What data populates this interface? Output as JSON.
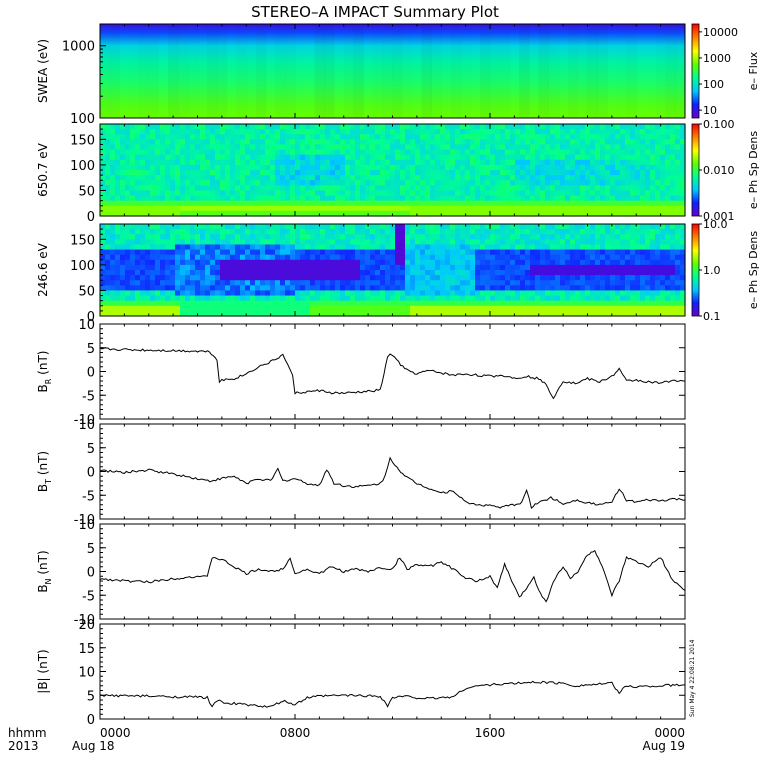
{
  "title": "STEREO–A IMPACT Summary Plot",
  "timestamp": "Sun May  4 22:08:21 2014",
  "time_axis": {
    "row1_labels": [
      "hhmm",
      "0000",
      "0800",
      "1600",
      "0000"
    ],
    "row2_labels": [
      "2013",
      "Aug 18",
      "Aug 19"
    ],
    "range_hours": [
      0,
      24
    ],
    "ticks_hours": [
      0,
      8,
      16,
      24
    ]
  },
  "colors": {
    "line": "#000000",
    "colormap": [
      "#6a00c8",
      "#1020ff",
      "#00c8ff",
      "#00ff90",
      "#60ff00",
      "#ffff00",
      "#ff8000",
      "#ff0000"
    ]
  },
  "chart_data": [
    {
      "type": "heatmap",
      "id": "swea",
      "ylabel": "SWEA (eV)",
      "y_scale": "log",
      "ylim": [
        100,
        2000
      ],
      "yticks": [
        "100",
        "1000"
      ],
      "colorbar": {
        "label": "e– Flux",
        "scale": "log",
        "ticks": [
          "10",
          "100",
          "1000",
          "10000"
        ],
        "range": [
          5,
          20000
        ]
      },
      "profile_energy": [
        100,
        150,
        300,
        600,
        1000,
        1500,
        2000
      ],
      "profile_level": [
        0.58,
        0.55,
        0.47,
        0.4,
        0.32,
        0.18,
        0.08
      ]
    },
    {
      "type": "heatmap",
      "id": "pad650",
      "ylabel": "650.7 eV",
      "ylim": [
        0,
        180
      ],
      "yticks": [
        "0",
        "50",
        "100",
        "150"
      ],
      "colorbar": {
        "label": "e– Ph Sp Dens",
        "scale": "log",
        "ticks": [
          "0.001",
          "0.010",
          "0.100"
        ],
        "range": [
          0.001,
          0.1
        ]
      }
    },
    {
      "type": "heatmap",
      "id": "pad246",
      "ylabel": "246.6 eV",
      "ylim": [
        0,
        180
      ],
      "yticks": [
        "0",
        "50",
        "100",
        "150"
      ],
      "colorbar": {
        "label": "e– Ph Sp Dens",
        "scale": "log",
        "ticks": [
          "0.1",
          "1.0",
          "10.0"
        ],
        "range": [
          0.1,
          10
        ]
      }
    },
    {
      "type": "line",
      "id": "br",
      "ylabel": "B",
      "ylabel_sub": "R",
      "ylabel_unit": " (nT)",
      "ylim": [
        -10,
        10
      ],
      "yticks": [
        "-10",
        "-5",
        "0",
        "5",
        "10"
      ],
      "x": [
        0,
        1,
        2,
        3,
        4,
        4.5,
        4.8,
        4.9,
        5.0,
        5.5,
        6.0,
        6.5,
        7.0,
        7.5,
        7.7,
        7.9,
        8.0,
        8.5,
        9.0,
        9.5,
        10.0,
        10.5,
        11.0,
        11.5,
        11.8,
        11.9,
        12.0,
        12.5,
        13.0,
        13.5,
        14.0,
        14.5,
        15.0,
        15.5,
        16.0,
        16.5,
        17.0,
        17.5,
        18.0,
        18.3,
        18.6,
        19.0,
        19.5,
        20.0,
        20.5,
        21.0,
        21.3,
        21.6,
        22.0,
        22.5,
        23.0,
        23.5,
        24.0
      ],
      "values": [
        4.8,
        4.6,
        4.5,
        4.4,
        4.3,
        4.2,
        2.5,
        -2.0,
        -1.8,
        -1.5,
        -0.5,
        1.0,
        2.0,
        3.5,
        1.5,
        -1.0,
        -4.5,
        -4.3,
        -4.0,
        -4.5,
        -4.6,
        -4.4,
        -4.2,
        -3.9,
        3.0,
        3.8,
        3.4,
        0.5,
        -0.5,
        0.2,
        -0.3,
        -0.8,
        -0.5,
        -0.8,
        -1.0,
        -0.8,
        -1.4,
        -1.0,
        -1.5,
        -2.8,
        -5.5,
        -2.0,
        -2.5,
        -1.5,
        -2.2,
        -1.0,
        0.5,
        -2.0,
        -1.8,
        -2.2,
        -2.5,
        -1.8,
        -2.0
      ]
    },
    {
      "type": "line",
      "id": "bt",
      "ylabel": "B",
      "ylabel_sub": "T",
      "ylabel_unit": " (nT)",
      "ylim": [
        -10,
        10
      ],
      "yticks": [
        "-10",
        "-5",
        "0",
        "5",
        "10"
      ],
      "x": [
        0,
        1,
        2,
        3,
        4,
        4.5,
        5.0,
        5.5,
        6.0,
        6.5,
        7.0,
        7.3,
        7.5,
        8.0,
        8.5,
        9.0,
        9.3,
        9.6,
        10.0,
        10.5,
        11.0,
        11.5,
        11.7,
        11.9,
        12.1,
        12.5,
        13.0,
        13.5,
        14.0,
        14.5,
        15.0,
        15.5,
        16.0,
        16.5,
        17.0,
        17.3,
        17.5,
        17.7,
        18.0,
        18.5,
        19.0,
        19.5,
        20.0,
        20.5,
        21.0,
        21.3,
        21.6,
        22.0,
        22.5,
        23.0,
        23.5,
        24.0
      ],
      "values": [
        0.2,
        -0.2,
        0.3,
        -0.5,
        -1.5,
        -2.0,
        -1.5,
        -1.0,
        -2.5,
        -1.5,
        -2.0,
        0.5,
        -2.0,
        -1.5,
        -2.5,
        -3.0,
        0.5,
        -2.5,
        -3.0,
        -3.2,
        -3.0,
        -2.5,
        -1.0,
        2.8,
        1.5,
        -1.0,
        -2.5,
        -3.5,
        -4.5,
        -4.0,
        -6.5,
        -7.0,
        -7.2,
        -7.5,
        -7.0,
        -6.5,
        -4.0,
        -7.5,
        -6.5,
        -5.5,
        -6.8,
        -6.0,
        -6.5,
        -7.0,
        -6.5,
        -3.5,
        -6.0,
        -6.5,
        -6.0,
        -6.2,
        -5.8,
        -6.0
      ]
    },
    {
      "type": "line",
      "id": "bn",
      "ylabel": "B",
      "ylabel_sub": "N",
      "ylabel_unit": " (nT)",
      "ylim": [
        -10,
        10
      ],
      "yticks": [
        "-10",
        "-5",
        "0",
        "5",
        "10"
      ],
      "x": [
        0,
        1,
        2,
        3,
        4,
        4.4,
        4.6,
        5.0,
        5.5,
        6.0,
        6.5,
        7.0,
        7.5,
        7.8,
        8.0,
        8.5,
        9.0,
        9.5,
        10.0,
        10.5,
        11.0,
        11.5,
        12.0,
        12.3,
        12.6,
        13.0,
        13.5,
        14.0,
        14.5,
        15.0,
        15.5,
        16.0,
        16.3,
        16.6,
        16.9,
        17.2,
        17.5,
        17.8,
        18.0,
        18.3,
        18.6,
        19.0,
        19.3,
        19.6,
        20.0,
        20.3,
        20.6,
        21.0,
        21.3,
        21.6,
        22.0,
        22.5,
        23.0,
        23.5,
        24.0
      ],
      "values": [
        -1.5,
        -2.0,
        -2.2,
        -1.5,
        -1.0,
        -1.2,
        3.0,
        2.5,
        1.0,
        -0.5,
        0.5,
        0.0,
        0.5,
        3.0,
        -0.5,
        0.5,
        -0.5,
        1.0,
        0.0,
        0.5,
        0.0,
        0.8,
        0.5,
        3.0,
        0.5,
        1.5,
        1.0,
        2.0,
        0.5,
        -1.5,
        -2.0,
        -1.0,
        -3.5,
        1.5,
        -2.0,
        -5.5,
        -3.5,
        -1.0,
        -4.0,
        -6.5,
        -2.0,
        1.0,
        -1.5,
        0.0,
        3.5,
        4.5,
        1.0,
        -5.0,
        -2.0,
        3.0,
        2.0,
        1.0,
        3.0,
        -2.0,
        -4.0
      ]
    },
    {
      "type": "line",
      "id": "bmag",
      "ylabel": "|B| (nT)",
      "ylim": [
        0,
        20
      ],
      "yticks": [
        "0",
        "5",
        "10",
        "15",
        "20"
      ],
      "x": [
        0,
        1,
        2,
        3,
        4,
        4.4,
        4.6,
        4.8,
        5.0,
        6.0,
        7.0,
        7.5,
        8.0,
        8.5,
        9.0,
        10.0,
        11.0,
        11.5,
        11.8,
        12.0,
        12.5,
        13.0,
        13.5,
        14.0,
        14.5,
        15.0,
        15.5,
        16.0,
        17.0,
        18.0,
        19.0,
        19.5,
        20.0,
        21.0,
        21.3,
        21.6,
        22.0,
        23.0,
        24.0
      ],
      "values": [
        5.0,
        4.9,
        4.8,
        4.7,
        4.6,
        4.5,
        2.5,
        4.0,
        3.5,
        3.0,
        2.5,
        3.8,
        3.0,
        4.5,
        4.8,
        5.0,
        4.9,
        4.8,
        2.8,
        4.5,
        4.8,
        4.5,
        4.3,
        4.5,
        4.7,
        6.5,
        7.0,
        7.2,
        7.5,
        7.8,
        7.5,
        7.0,
        7.2,
        7.5,
        5.5,
        7.0,
        6.8,
        7.0,
        7.2
      ]
    }
  ]
}
